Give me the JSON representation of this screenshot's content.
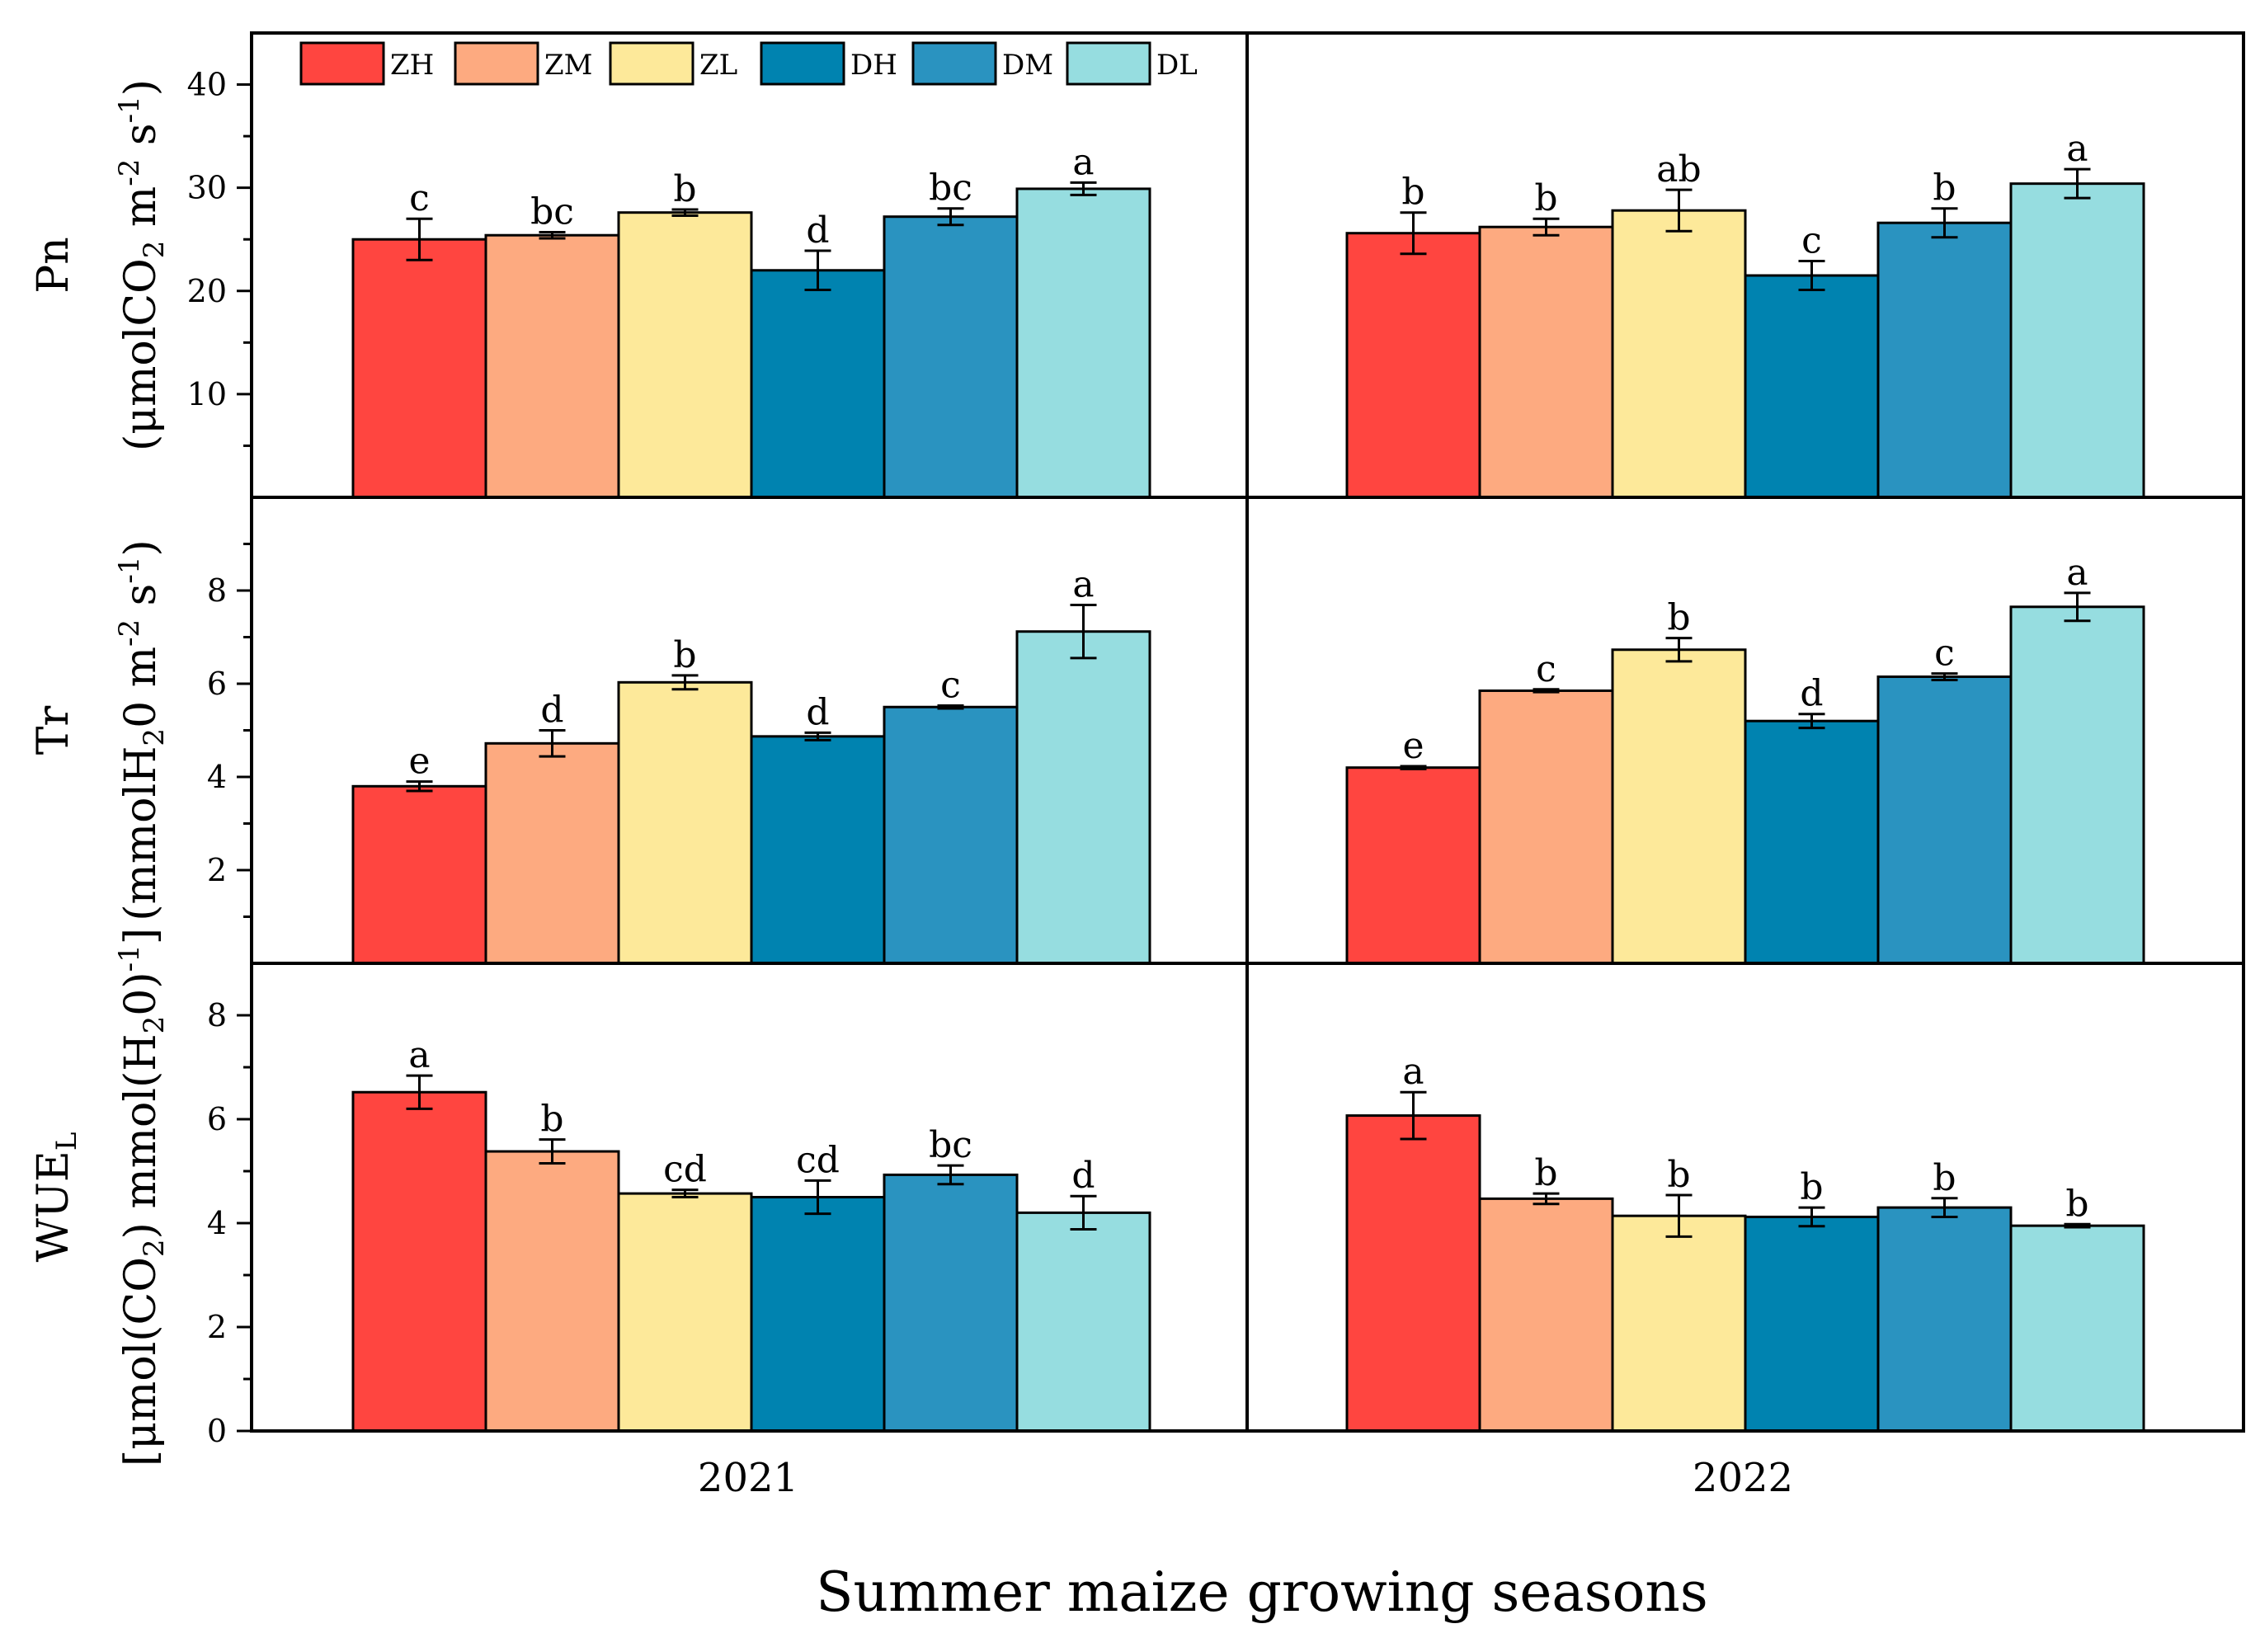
{
  "chart_data": {
    "type": "bar",
    "x_title": "Summer maize growing seasons",
    "years": [
      "2021",
      "2022"
    ],
    "treatments": [
      "ZH",
      "ZM",
      "ZL",
      "DH",
      "DM",
      "DL"
    ],
    "colors": {
      "ZH": "#ff4540",
      "ZM": "#fdaa80",
      "ZL": "#fde99a",
      "DH": "#0083b0",
      "DM": "#2a93c0",
      "DL": "#96dde0"
    },
    "panels": [
      {
        "id": "pn",
        "ylabel_main": "Pn",
        "ylabel_unit_parts": [
          "(μmolCO",
          "2",
          " m",
          "-2",
          " s",
          "-1",
          ")"
        ],
        "ylim": [
          0,
          45
        ],
        "yticks": [
          10,
          20,
          30,
          40
        ],
        "data": {
          "2021": {
            "values": [
              25.0,
              25.4,
              27.6,
              22.0,
              27.2,
              29.9
            ],
            "errors": [
              2.0,
              0.3,
              0.3,
              1.9,
              0.8,
              0.6
            ],
            "letters": [
              "c",
              "bc",
              "b",
              "d",
              "bc",
              "a"
            ]
          },
          "2022": {
            "values": [
              25.6,
              26.2,
              27.8,
              21.5,
              26.6,
              30.4
            ],
            "errors": [
              2.0,
              0.8,
              2.0,
              1.4,
              1.4,
              1.4
            ],
            "letters": [
              "b",
              "b",
              "ab",
              "c",
              "b",
              "a"
            ]
          }
        }
      },
      {
        "id": "tr",
        "ylabel_main": "Tr",
        "ylabel_unit_parts": [
          "(mmolH",
          "2",
          "0 m",
          "-2",
          " s",
          "-1",
          ")"
        ],
        "ylim": [
          0,
          10
        ],
        "yticks": [
          2,
          4,
          6,
          8
        ],
        "data": {
          "2021": {
            "values": [
              3.8,
              4.72,
              6.03,
              4.87,
              5.5,
              7.12
            ],
            "errors": [
              0.1,
              0.28,
              0.15,
              0.08,
              0.03,
              0.57
            ],
            "letters": [
              "e",
              "d",
              "b",
              "d",
              "c",
              "a"
            ]
          },
          "2022": {
            "values": [
              4.2,
              5.85,
              6.73,
              5.2,
              6.15,
              7.65
            ],
            "errors": [
              0.03,
              0.03,
              0.25,
              0.15,
              0.07,
              0.3
            ],
            "letters": [
              "e",
              "c",
              "b",
              "d",
              "c",
              "a"
            ]
          }
        }
      },
      {
        "id": "wue",
        "ylabel_main_parts": [
          "WUE",
          "L"
        ],
        "ylabel_unit_parts": [
          "[μmol(CO",
          "2",
          ") mmol(H",
          "2",
          "0)",
          "-1",
          "]"
        ],
        "ylim": [
          0,
          9
        ],
        "yticks": [
          0,
          2,
          4,
          6,
          8
        ],
        "data": {
          "2021": {
            "values": [
              6.52,
              5.38,
              4.57,
              4.5,
              4.93,
              4.2
            ],
            "errors": [
              0.32,
              0.23,
              0.07,
              0.32,
              0.18,
              0.32
            ],
            "letters": [
              "a",
              "b",
              "cd",
              "cd",
              "bc",
              "d"
            ]
          },
          "2022": {
            "values": [
              6.07,
              4.47,
              4.14,
              4.12,
              4.3,
              3.95
            ],
            "errors": [
              0.45,
              0.1,
              0.4,
              0.18,
              0.18,
              0.03
            ],
            "letters": [
              "a",
              "b",
              "b",
              "b",
              "b",
              "b"
            ]
          }
        }
      }
    ]
  }
}
